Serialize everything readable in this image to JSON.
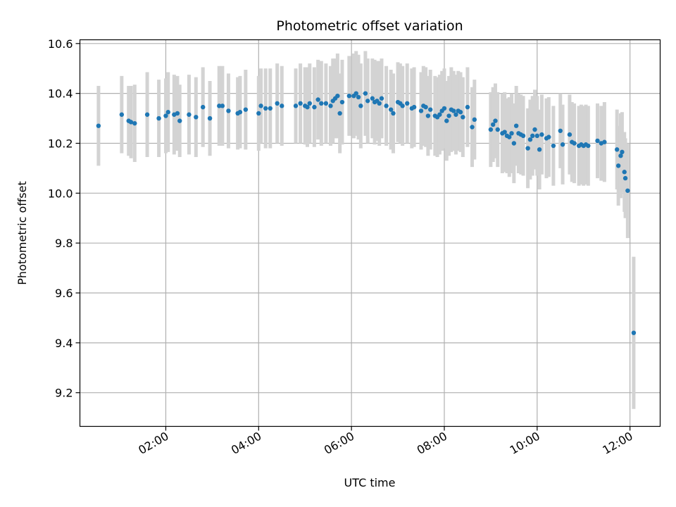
{
  "chart_data": {
    "type": "scatter",
    "title": "Photometric offset variation",
    "xlabel": "UTC time",
    "ylabel": "Photometric offset",
    "xlim_hours": [
      0.15,
      12.65
    ],
    "ylim": [
      9.065,
      10.615
    ],
    "grid": true,
    "x_ticks": [
      {
        "hour": 2,
        "label": "02:00"
      },
      {
        "hour": 4,
        "label": "04:00"
      },
      {
        "hour": 6,
        "label": "06:00"
      },
      {
        "hour": 8,
        "label": "08:00"
      },
      {
        "hour": 10,
        "label": "10:00"
      },
      {
        "hour": 12,
        "label": "12:00"
      }
    ],
    "y_ticks": [
      {
        "value": 9.2,
        "label": "9.2"
      },
      {
        "value": 9.4,
        "label": "9.4"
      },
      {
        "value": 9.6,
        "label": "9.6"
      },
      {
        "value": 9.8,
        "label": "9.8"
      },
      {
        "value": 10.0,
        "label": "10.0"
      },
      {
        "value": 10.2,
        "label": "10.2"
      },
      {
        "value": 10.4,
        "label": "10.4"
      },
      {
        "value": 10.6,
        "label": "10.6"
      }
    ],
    "colors": {
      "point": "#1f77b4",
      "errorbar": "#d3d3d3",
      "grid": "#b0b0b0"
    },
    "series": [
      {
        "name": "Photometric offset",
        "points": [
          [
            0.55,
            10.27,
            0.16
          ],
          [
            1.05,
            10.315,
            0.155
          ],
          [
            1.2,
            10.29,
            0.14
          ],
          [
            1.25,
            10.285,
            0.145
          ],
          [
            1.33,
            10.28,
            0.155
          ],
          [
            1.6,
            10.315,
            0.17
          ],
          [
            1.85,
            10.3,
            0.155
          ],
          [
            2.0,
            10.31,
            0.15
          ],
          [
            2.05,
            10.325,
            0.16
          ],
          [
            2.18,
            10.315,
            0.16
          ],
          [
            2.25,
            10.32,
            0.15
          ],
          [
            2.3,
            10.29,
            0.145
          ],
          [
            2.5,
            10.315,
            0.16
          ],
          [
            2.65,
            10.305,
            0.16
          ],
          [
            2.8,
            10.345,
            0.16
          ],
          [
            2.95,
            10.3,
            0.15
          ],
          [
            3.15,
            10.35,
            0.16
          ],
          [
            3.22,
            10.35,
            0.16
          ],
          [
            3.35,
            10.33,
            0.15
          ],
          [
            3.55,
            10.32,
            0.145
          ],
          [
            3.6,
            10.325,
            0.145
          ],
          [
            3.72,
            10.335,
            0.16
          ],
          [
            4.0,
            10.32,
            0.15
          ],
          [
            4.05,
            10.35,
            0.15
          ],
          [
            4.15,
            10.34,
            0.16
          ],
          [
            4.25,
            10.34,
            0.16
          ],
          [
            4.4,
            10.36,
            0.16
          ],
          [
            4.5,
            10.35,
            0.16
          ],
          [
            4.8,
            10.35,
            0.15
          ],
          [
            4.9,
            10.36,
            0.16
          ],
          [
            5.0,
            10.35,
            0.155
          ],
          [
            5.05,
            10.345,
            0.16
          ],
          [
            5.1,
            10.36,
            0.16
          ],
          [
            5.2,
            10.345,
            0.16
          ],
          [
            5.28,
            10.375,
            0.16
          ],
          [
            5.35,
            10.36,
            0.17
          ],
          [
            5.45,
            10.36,
            0.16
          ],
          [
            5.55,
            10.35,
            0.16
          ],
          [
            5.6,
            10.37,
            0.17
          ],
          [
            5.65,
            10.38,
            0.16
          ],
          [
            5.7,
            10.39,
            0.17
          ],
          [
            5.75,
            10.32,
            0.16
          ],
          [
            5.8,
            10.365,
            0.17
          ],
          [
            5.95,
            10.39,
            0.16
          ],
          [
            6.05,
            10.39,
            0.17
          ],
          [
            6.1,
            10.4,
            0.17
          ],
          [
            6.15,
            10.385,
            0.17
          ],
          [
            6.2,
            10.35,
            0.17
          ],
          [
            6.3,
            10.4,
            0.17
          ],
          [
            6.35,
            10.37,
            0.17
          ],
          [
            6.45,
            10.38,
            0.16
          ],
          [
            6.5,
            10.365,
            0.17
          ],
          [
            6.55,
            10.37,
            0.16
          ],
          [
            6.6,
            10.36,
            0.17
          ],
          [
            6.65,
            10.38,
            0.16
          ],
          [
            6.75,
            10.35,
            0.16
          ],
          [
            6.85,
            10.335,
            0.16
          ],
          [
            6.9,
            10.32,
            0.16
          ],
          [
            7.0,
            10.365,
            0.16
          ],
          [
            7.05,
            10.36,
            0.16
          ],
          [
            7.1,
            10.35,
            0.16
          ],
          [
            7.2,
            10.36,
            0.16
          ],
          [
            7.3,
            10.34,
            0.16
          ],
          [
            7.35,
            10.345,
            0.16
          ],
          [
            7.5,
            10.33,
            0.155
          ],
          [
            7.55,
            10.35,
            0.16
          ],
          [
            7.6,
            10.345,
            0.16
          ],
          [
            7.65,
            10.31,
            0.16
          ],
          [
            7.7,
            10.335,
            0.16
          ],
          [
            7.8,
            10.31,
            0.16
          ],
          [
            7.85,
            10.305,
            0.16
          ],
          [
            7.9,
            10.315,
            0.16
          ],
          [
            7.95,
            10.33,
            0.16
          ],
          [
            8.0,
            10.34,
            0.16
          ],
          [
            8.05,
            10.29,
            0.16
          ],
          [
            8.1,
            10.31,
            0.16
          ],
          [
            8.15,
            10.335,
            0.17
          ],
          [
            8.2,
            10.33,
            0.16
          ],
          [
            8.25,
            10.315,
            0.16
          ],
          [
            8.3,
            10.33,
            0.16
          ],
          [
            8.35,
            10.325,
            0.16
          ],
          [
            8.4,
            10.305,
            0.16
          ],
          [
            8.5,
            10.345,
            0.16
          ],
          [
            8.6,
            10.265,
            0.16
          ],
          [
            8.65,
            10.295,
            0.16
          ],
          [
            9.0,
            10.255,
            0.15
          ],
          [
            9.05,
            10.275,
            0.15
          ],
          [
            9.1,
            10.29,
            0.15
          ],
          [
            9.15,
            10.255,
            0.15
          ],
          [
            9.25,
            10.24,
            0.16
          ],
          [
            9.3,
            10.245,
            0.16
          ],
          [
            9.35,
            10.23,
            0.15
          ],
          [
            9.4,
            10.225,
            0.16
          ],
          [
            9.45,
            10.24,
            0.16
          ],
          [
            9.5,
            10.2,
            0.16
          ],
          [
            9.55,
            10.27,
            0.16
          ],
          [
            9.6,
            10.24,
            0.16
          ],
          [
            9.65,
            10.235,
            0.16
          ],
          [
            9.7,
            10.23,
            0.16
          ],
          [
            9.8,
            10.18,
            0.16
          ],
          [
            9.85,
            10.215,
            0.16
          ],
          [
            9.9,
            10.23,
            0.16
          ],
          [
            9.95,
            10.255,
            0.16
          ],
          [
            10.0,
            10.23,
            0.16
          ],
          [
            10.05,
            10.175,
            0.16
          ],
          [
            10.1,
            10.235,
            0.16
          ],
          [
            10.2,
            10.22,
            0.16
          ],
          [
            10.25,
            10.225,
            0.16
          ],
          [
            10.35,
            10.19,
            0.16
          ],
          [
            10.5,
            10.25,
            0.15
          ],
          [
            10.55,
            10.195,
            0.16
          ],
          [
            10.7,
            10.235,
            0.16
          ],
          [
            10.75,
            10.205,
            0.16
          ],
          [
            10.8,
            10.2,
            0.16
          ],
          [
            10.9,
            10.19,
            0.16
          ],
          [
            10.95,
            10.195,
            0.16
          ],
          [
            11.0,
            10.19,
            0.16
          ],
          [
            11.05,
            10.195,
            0.16
          ],
          [
            11.1,
            10.19,
            0.16
          ],
          [
            11.3,
            10.21,
            0.15
          ],
          [
            11.38,
            10.2,
            0.15
          ],
          [
            11.45,
            10.205,
            0.16
          ],
          [
            11.72,
            10.175,
            0.16
          ],
          [
            11.75,
            10.11,
            0.16
          ],
          [
            11.8,
            10.15,
            0.17
          ],
          [
            11.83,
            10.165,
            0.16
          ],
          [
            11.88,
            10.085,
            0.16
          ],
          [
            11.9,
            10.06,
            0.16
          ],
          [
            11.95,
            10.01,
            0.19
          ],
          [
            12.08,
            9.44,
            0.305
          ]
        ]
      }
    ]
  }
}
